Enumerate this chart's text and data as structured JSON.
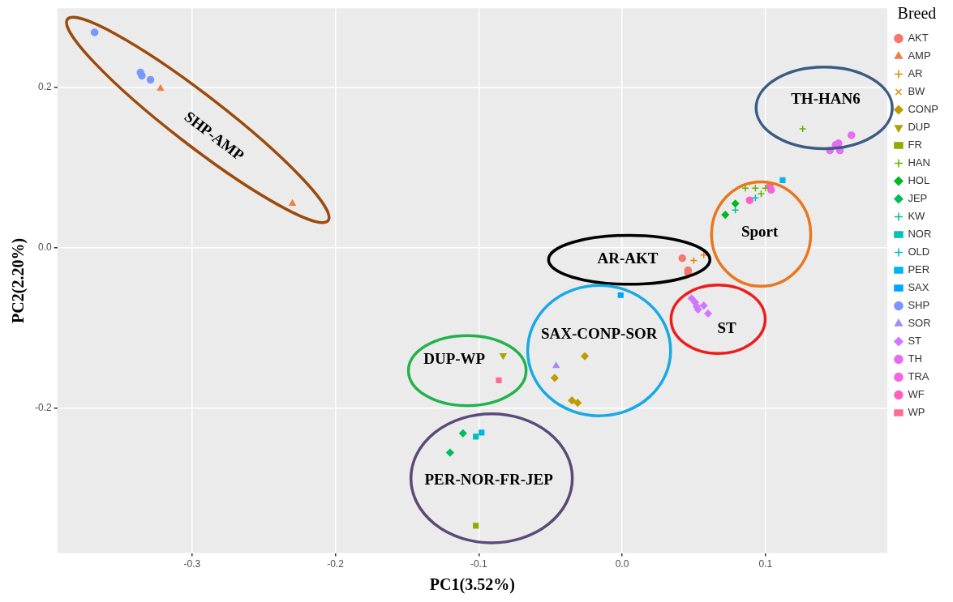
{
  "chart_data": {
    "type": "scatter",
    "xlabel": "PC1(3.52%)",
    "ylabel": "PC2(2.20%)",
    "legend_title": "Breed",
    "legend": "right",
    "grid": true,
    "xlim": [
      -0.394,
      0.185
    ],
    "ylim": [
      -0.38,
      0.298
    ],
    "xticks": [
      -0.3,
      -0.2,
      -0.1,
      {
        "value": 0,
        "label": "0.0"
      },
      0.1
    ],
    "yticks": [
      -0.2,
      {
        "value": 0,
        "label": "0.0"
      },
      0.2
    ],
    "annotations": [
      "SHP-AMP",
      "TH-HAN6",
      "Sport",
      "AR-AKT",
      "ST",
      "SAX-CONP-SOR",
      "DUP-WP",
      "PER-NOR-FR-JEP"
    ],
    "series": [
      {
        "name": "AKT",
        "color": "#f8766d",
        "marker": "circle",
        "x": [
          0.042,
          0.046,
          0.046
        ],
        "values": [
          -0.013,
          -0.028,
          -0.031
        ]
      },
      {
        "name": "AMP",
        "color": "#ee8043",
        "marker": "triangle",
        "x": [
          -0.322,
          -0.23
        ],
        "values": [
          0.198,
          0.055
        ]
      },
      {
        "name": "AR",
        "color": "#e38900",
        "marker": "cross",
        "x": [
          0.05,
          0.057
        ],
        "values": [
          -0.016,
          -0.009
        ]
      },
      {
        "name": "BW",
        "color": "#d39200",
        "marker": "x"
      },
      {
        "name": "CONP",
        "color": "#c09b00",
        "marker": "diamond",
        "x": [
          -0.026,
          -0.047,
          -0.035,
          -0.031
        ],
        "values": [
          -0.135,
          -0.162,
          -0.19,
          -0.193
        ]
      },
      {
        "name": "DUP",
        "color": "#a9a400",
        "marker": "triangle-down",
        "x": [
          -0.083
        ],
        "values": [
          -0.134
        ]
      },
      {
        "name": "FR",
        "color": "#8eab00",
        "marker": "square",
        "x": [
          -0.102
        ],
        "values": [
          -0.346
        ]
      },
      {
        "name": "HAN",
        "color": "#64b200",
        "marker": "cross",
        "x": [
          0.126,
          0.086,
          0.093,
          0.1,
          0.097
        ],
        "values": [
          0.148,
          0.074,
          0.074,
          0.074,
          0.067
        ]
      },
      {
        "name": "HOL",
        "color": "#00b81f",
        "marker": "diamond",
        "x": [
          0.079,
          0.072
        ],
        "values": [
          0.055,
          0.041
        ]
      },
      {
        "name": "JEP",
        "color": "#00bd5c",
        "marker": "diamond",
        "x": [
          -0.111,
          -0.12
        ],
        "values": [
          -0.231,
          -0.255
        ]
      },
      {
        "name": "KW",
        "color": "#00c08b",
        "marker": "cross",
        "x": [
          0.079
        ],
        "values": [
          0.047
        ]
      },
      {
        "name": "NOR",
        "color": "#00c0b8",
        "marker": "square",
        "x": [
          -0.102
        ],
        "values": [
          -0.235
        ]
      },
      {
        "name": "OLD",
        "color": "#00bcd8",
        "marker": "cross",
        "x": [
          0.093
        ],
        "values": [
          0.062
        ]
      },
      {
        "name": "PER",
        "color": "#00b4ef",
        "marker": "square",
        "x": [
          0.112,
          -0.098
        ],
        "values": [
          0.084,
          -0.23
        ]
      },
      {
        "name": "SAX",
        "color": "#00a5ff",
        "marker": "square",
        "x": [
          -0.001
        ],
        "values": [
          -0.059
        ]
      },
      {
        "name": "SHP",
        "color": "#7997ff",
        "marker": "circle",
        "x": [
          -0.368,
          -0.336,
          -0.335,
          -0.329
        ],
        "values": [
          0.268,
          0.218,
          0.214,
          0.209
        ]
      },
      {
        "name": "SOR",
        "color": "#ac88ff",
        "marker": "triangle",
        "x": [
          -0.046
        ],
        "values": [
          -0.147
        ]
      },
      {
        "name": "ST",
        "color": "#cf78ff",
        "marker": "diamond",
        "x": [
          0.0485,
          0.051,
          0.052,
          0.053,
          0.057,
          0.06
        ],
        "values": [
          -0.063,
          -0.068,
          -0.073,
          -0.077,
          -0.072,
          -0.082
        ]
      },
      {
        "name": "TH",
        "color": "#e76bf3",
        "marker": "circle",
        "x": [
          0.16,
          0.151,
          0.149,
          0.145,
          0.152
        ],
        "values": [
          0.14,
          0.13,
          0.128,
          0.121,
          0.121
        ]
      },
      {
        "name": "TRA",
        "color": "#f564e3",
        "marker": "circle",
        "x": [
          0.104
        ],
        "values": [
          0.072
        ]
      },
      {
        "name": "WF",
        "color": "#ff61c3",
        "marker": "circle",
        "x": [
          0.103,
          0.089
        ],
        "values": [
          0.077,
          0.059
        ]
      },
      {
        "name": "WP",
        "color": "#ff6c91",
        "marker": "square",
        "x": [
          -0.086
        ],
        "values": [
          -0.165
        ]
      }
    ]
  }
}
